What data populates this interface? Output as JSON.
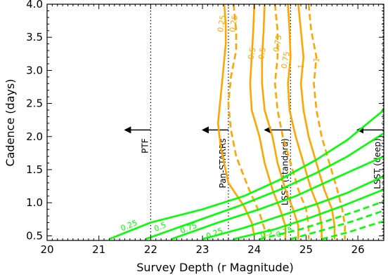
{
  "chart_data": {
    "type": "line",
    "xlabel": "Survey Depth (r Magnitude)",
    "ylabel": "Cadence (days)",
    "xlim": [
      20,
      26.5
    ],
    "ylim": [
      0.43,
      4.0
    ],
    "x_ticks": [
      20,
      21,
      22,
      23,
      24,
      25,
      26
    ],
    "y_ticks": [
      0.5,
      1.0,
      1.5,
      2.0,
      2.5,
      3.0,
      3.5,
      4.0
    ],
    "x_tick_labels": [
      "20",
      "21",
      "22",
      "23",
      "24",
      "25",
      "26"
    ],
    "y_tick_labels": [
      "0.5",
      "1.0",
      "1.5",
      "2.0",
      "2.5",
      "3.0",
      "3.5",
      "4.0"
    ],
    "colors": {
      "orange": "#FFA500",
      "green": "#00FF00"
    },
    "surveys": [
      {
        "label": "PTF",
        "depth": 22.0,
        "arrow_y": 2.1
      },
      {
        "label": "Pan-STARRs",
        "depth": 23.5,
        "arrow_y": 2.1
      },
      {
        "label": "LSST (standard)",
        "depth": 24.7,
        "arrow_y": 2.1
      },
      {
        "label": "LSST (deep)",
        "depth": 26.5,
        "arrow_y": 2.1
      }
    ],
    "series": [
      {
        "color": "orange",
        "dash": false,
        "label": "0.25",
        "label_at": [
          23.42,
          3.7
        ],
        "points": [
          [
            23.42,
            4.0
          ],
          [
            23.45,
            3.7
          ],
          [
            23.45,
            3.4
          ],
          [
            23.4,
            3.0
          ],
          [
            23.35,
            2.6
          ],
          [
            23.3,
            2.2
          ],
          [
            23.35,
            1.85
          ],
          [
            23.5,
            1.3
          ],
          [
            23.8,
            0.95
          ],
          [
            23.95,
            0.7
          ],
          [
            24.0,
            0.5
          ]
        ]
      },
      {
        "color": "orange",
        "dash": true,
        "label": "0.25",
        "label_at": [
          23.65,
          3.7
        ],
        "points": [
          [
            23.6,
            4.0
          ],
          [
            23.65,
            3.6
          ],
          [
            23.65,
            3.3
          ],
          [
            23.55,
            2.9
          ],
          [
            23.5,
            2.5
          ],
          [
            23.55,
            2.1
          ],
          [
            23.65,
            1.7
          ],
          [
            23.9,
            1.2
          ],
          [
            24.1,
            0.85
          ],
          [
            24.2,
            0.6
          ],
          [
            24.2,
            0.45
          ]
        ]
      },
      {
        "color": "orange",
        "dash": false,
        "label": "0.5",
        "label_at": [
          24.0,
          3.25
        ],
        "points": [
          [
            24.0,
            4.0
          ],
          [
            23.98,
            3.6
          ],
          [
            23.95,
            3.2
          ],
          [
            23.92,
            2.8
          ],
          [
            23.95,
            2.4
          ],
          [
            24.1,
            2.0
          ],
          [
            24.2,
            1.6
          ],
          [
            24.35,
            1.2
          ],
          [
            24.5,
            0.9
          ],
          [
            24.6,
            0.65
          ],
          [
            24.6,
            0.45
          ]
        ]
      },
      {
        "color": "orange",
        "dash": false,
        "label": "0.5",
        "label_at": [
          24.2,
          3.25
        ],
        "points": [
          [
            24.2,
            4.0
          ],
          [
            24.18,
            3.6
          ],
          [
            24.15,
            3.2
          ],
          [
            24.15,
            2.8
          ],
          [
            24.2,
            2.4
          ],
          [
            24.35,
            2.0
          ],
          [
            24.45,
            1.6
          ],
          [
            24.6,
            1.2
          ],
          [
            24.75,
            0.9
          ],
          [
            24.85,
            0.65
          ],
          [
            24.85,
            0.45
          ]
        ]
      },
      {
        "color": "orange",
        "dash": true,
        "label": "0.75",
        "label_at": [
          24.5,
          3.4
        ],
        "points": [
          [
            24.4,
            4.0
          ],
          [
            24.45,
            3.6
          ],
          [
            24.45,
            3.2
          ],
          [
            24.4,
            2.8
          ],
          [
            24.45,
            2.4
          ],
          [
            24.55,
            2.0
          ],
          [
            24.7,
            1.6
          ],
          [
            24.85,
            1.2
          ],
          [
            25.0,
            0.9
          ],
          [
            25.05,
            0.65
          ],
          [
            25.05,
            0.45
          ]
        ]
      },
      {
        "color": "orange",
        "dash": false,
        "label": "0.75",
        "label_at": [
          24.65,
          3.15
        ],
        "points": [
          [
            24.65,
            4.0
          ],
          [
            24.68,
            3.6
          ],
          [
            24.7,
            3.2
          ],
          [
            24.65,
            2.8
          ],
          [
            24.68,
            2.4
          ],
          [
            24.8,
            2.0
          ],
          [
            24.95,
            1.6
          ],
          [
            25.1,
            1.2
          ],
          [
            25.25,
            0.9
          ],
          [
            25.3,
            0.65
          ],
          [
            25.3,
            0.45
          ]
        ]
      },
      {
        "color": "orange",
        "dash": false,
        "label": "1",
        "label_at": [
          24.95,
          3.05
        ],
        "points": [
          [
            24.85,
            4.0
          ],
          [
            24.9,
            3.6
          ],
          [
            24.95,
            3.2
          ],
          [
            24.9,
            2.8
          ],
          [
            24.95,
            2.4
          ],
          [
            25.05,
            2.0
          ],
          [
            25.2,
            1.6
          ],
          [
            25.35,
            1.2
          ],
          [
            25.5,
            0.9
          ],
          [
            25.55,
            0.65
          ],
          [
            25.55,
            0.45
          ]
        ]
      },
      {
        "color": "orange",
        "dash": true,
        "label": "1",
        "label_at": [
          25.25,
          3.15
        ],
        "points": [
          [
            25.05,
            4.0
          ],
          [
            25.1,
            3.6
          ],
          [
            25.2,
            3.2
          ],
          [
            25.15,
            2.8
          ],
          [
            25.2,
            2.4
          ],
          [
            25.3,
            2.0
          ],
          [
            25.45,
            1.6
          ],
          [
            25.6,
            1.2
          ],
          [
            25.7,
            0.9
          ],
          [
            25.75,
            0.65
          ],
          [
            25.75,
            0.45
          ]
        ]
      },
      {
        "color": "green",
        "dash": false,
        "label": "0.25",
        "label_at": [
          21.6,
          0.62
        ],
        "points": [
          [
            21.2,
            0.45
          ],
          [
            22.0,
            0.7
          ],
          [
            23.0,
            0.9
          ],
          [
            23.8,
            1.1
          ],
          [
            24.5,
            1.35
          ],
          [
            25.2,
            1.65
          ],
          [
            25.8,
            1.95
          ],
          [
            26.5,
            2.4
          ]
        ]
      },
      {
        "color": "green",
        "dash": false,
        "label": "0.5",
        "label_at": [
          22.2,
          0.6
        ],
        "points": [
          [
            21.9,
            0.45
          ],
          [
            22.8,
            0.7
          ],
          [
            23.7,
            0.95
          ],
          [
            24.5,
            1.2
          ],
          [
            25.2,
            1.45
          ],
          [
            25.8,
            1.7
          ],
          [
            26.5,
            2.05
          ]
        ]
      },
      {
        "color": "green",
        "dash": false,
        "label": "0.75",
        "label_at": [
          22.75,
          0.58
        ],
        "points": [
          [
            22.4,
            0.45
          ],
          [
            23.3,
            0.7
          ],
          [
            24.1,
            0.9
          ],
          [
            24.8,
            1.1
          ],
          [
            25.5,
            1.35
          ],
          [
            26.5,
            1.7
          ]
        ]
      },
      {
        "color": "green",
        "dash": false,
        "label": "0.25",
        "label_at": [
          23.25,
          0.5
        ],
        "points": [
          [
            23.0,
            0.45
          ],
          [
            23.8,
            0.62
          ],
          [
            24.5,
            0.8
          ],
          [
            25.2,
            0.98
          ],
          [
            25.8,
            1.15
          ],
          [
            26.5,
            1.4
          ]
        ]
      },
      {
        "color": "green",
        "dash": false,
        "label": "0.5",
        "label_at": [
          24.25,
          0.5
        ],
        "points": [
          [
            23.6,
            0.45
          ],
          [
            24.4,
            0.6
          ],
          [
            25.1,
            0.78
          ],
          [
            25.7,
            0.95
          ],
          [
            26.5,
            1.2
          ]
        ]
      },
      {
        "color": "green",
        "dash": true,
        "label": "",
        "label_at": null,
        "points": [
          [
            24.1,
            0.45
          ],
          [
            24.9,
            0.6
          ],
          [
            25.5,
            0.75
          ],
          [
            26.0,
            0.88
          ],
          [
            26.5,
            1.02
          ]
        ]
      },
      {
        "color": "green",
        "dash": true,
        "label": "0.75",
        "label_at": [
          24.6,
          0.52
        ],
        "points": [
          [
            24.7,
            0.45
          ],
          [
            25.3,
            0.58
          ],
          [
            25.9,
            0.72
          ],
          [
            26.5,
            0.88
          ]
        ]
      },
      {
        "color": "green",
        "dash": true,
        "label": "",
        "label_at": null,
        "points": [
          [
            25.3,
            0.45
          ],
          [
            25.8,
            0.55
          ],
          [
            26.2,
            0.65
          ],
          [
            26.5,
            0.72
          ]
        ]
      }
    ]
  }
}
